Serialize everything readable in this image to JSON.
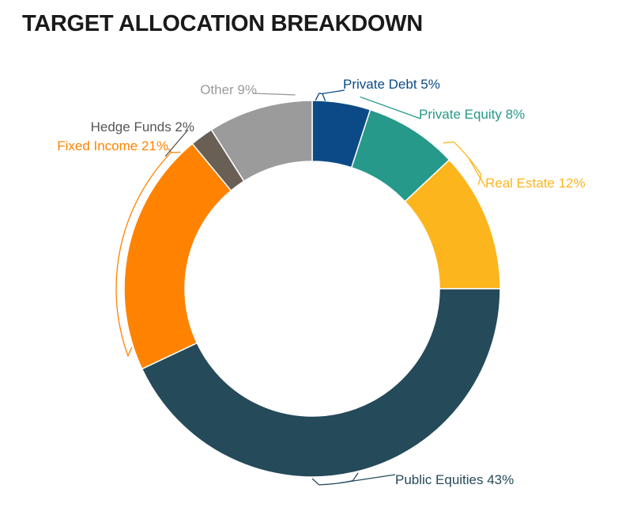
{
  "chart_data": {
    "type": "pie",
    "variant": "donut",
    "title": "TARGET ALLOCATION BREAKDOWN",
    "slices": [
      {
        "name": "Private Debt",
        "value": 5,
        "label": "Private Debt 5%",
        "color": "#0B4A86"
      },
      {
        "name": "Private Equity",
        "value": 8,
        "label": "Private Equity 8%",
        "color": "#26998A"
      },
      {
        "name": "Real Estate",
        "value": 12,
        "label": "Real Estate 12%",
        "color": "#FDB51D"
      },
      {
        "name": "Public Equities",
        "value": 43,
        "label": "Public Equities 43%",
        "color": "#254A5A"
      },
      {
        "name": "Fixed Income",
        "value": 21,
        "label": "Fixed Income 21%",
        "color": "#FF8300"
      },
      {
        "name": "Hedge Funds",
        "value": 2,
        "label": "Hedge Funds 2%",
        "color": "#6A5F55"
      },
      {
        "name": "Other",
        "value": 9,
        "label": "Other 9%",
        "color": "#9B9B9B"
      }
    ],
    "label_colors": {
      "Private Debt": "#0B4A86",
      "Private Equity": "#26998A",
      "Real Estate": "#FDB51D",
      "Public Equities": "#254A5A",
      "Fixed Income": "#FF8300",
      "Hedge Funds": "#555555",
      "Other": "#9B9B9B"
    }
  }
}
